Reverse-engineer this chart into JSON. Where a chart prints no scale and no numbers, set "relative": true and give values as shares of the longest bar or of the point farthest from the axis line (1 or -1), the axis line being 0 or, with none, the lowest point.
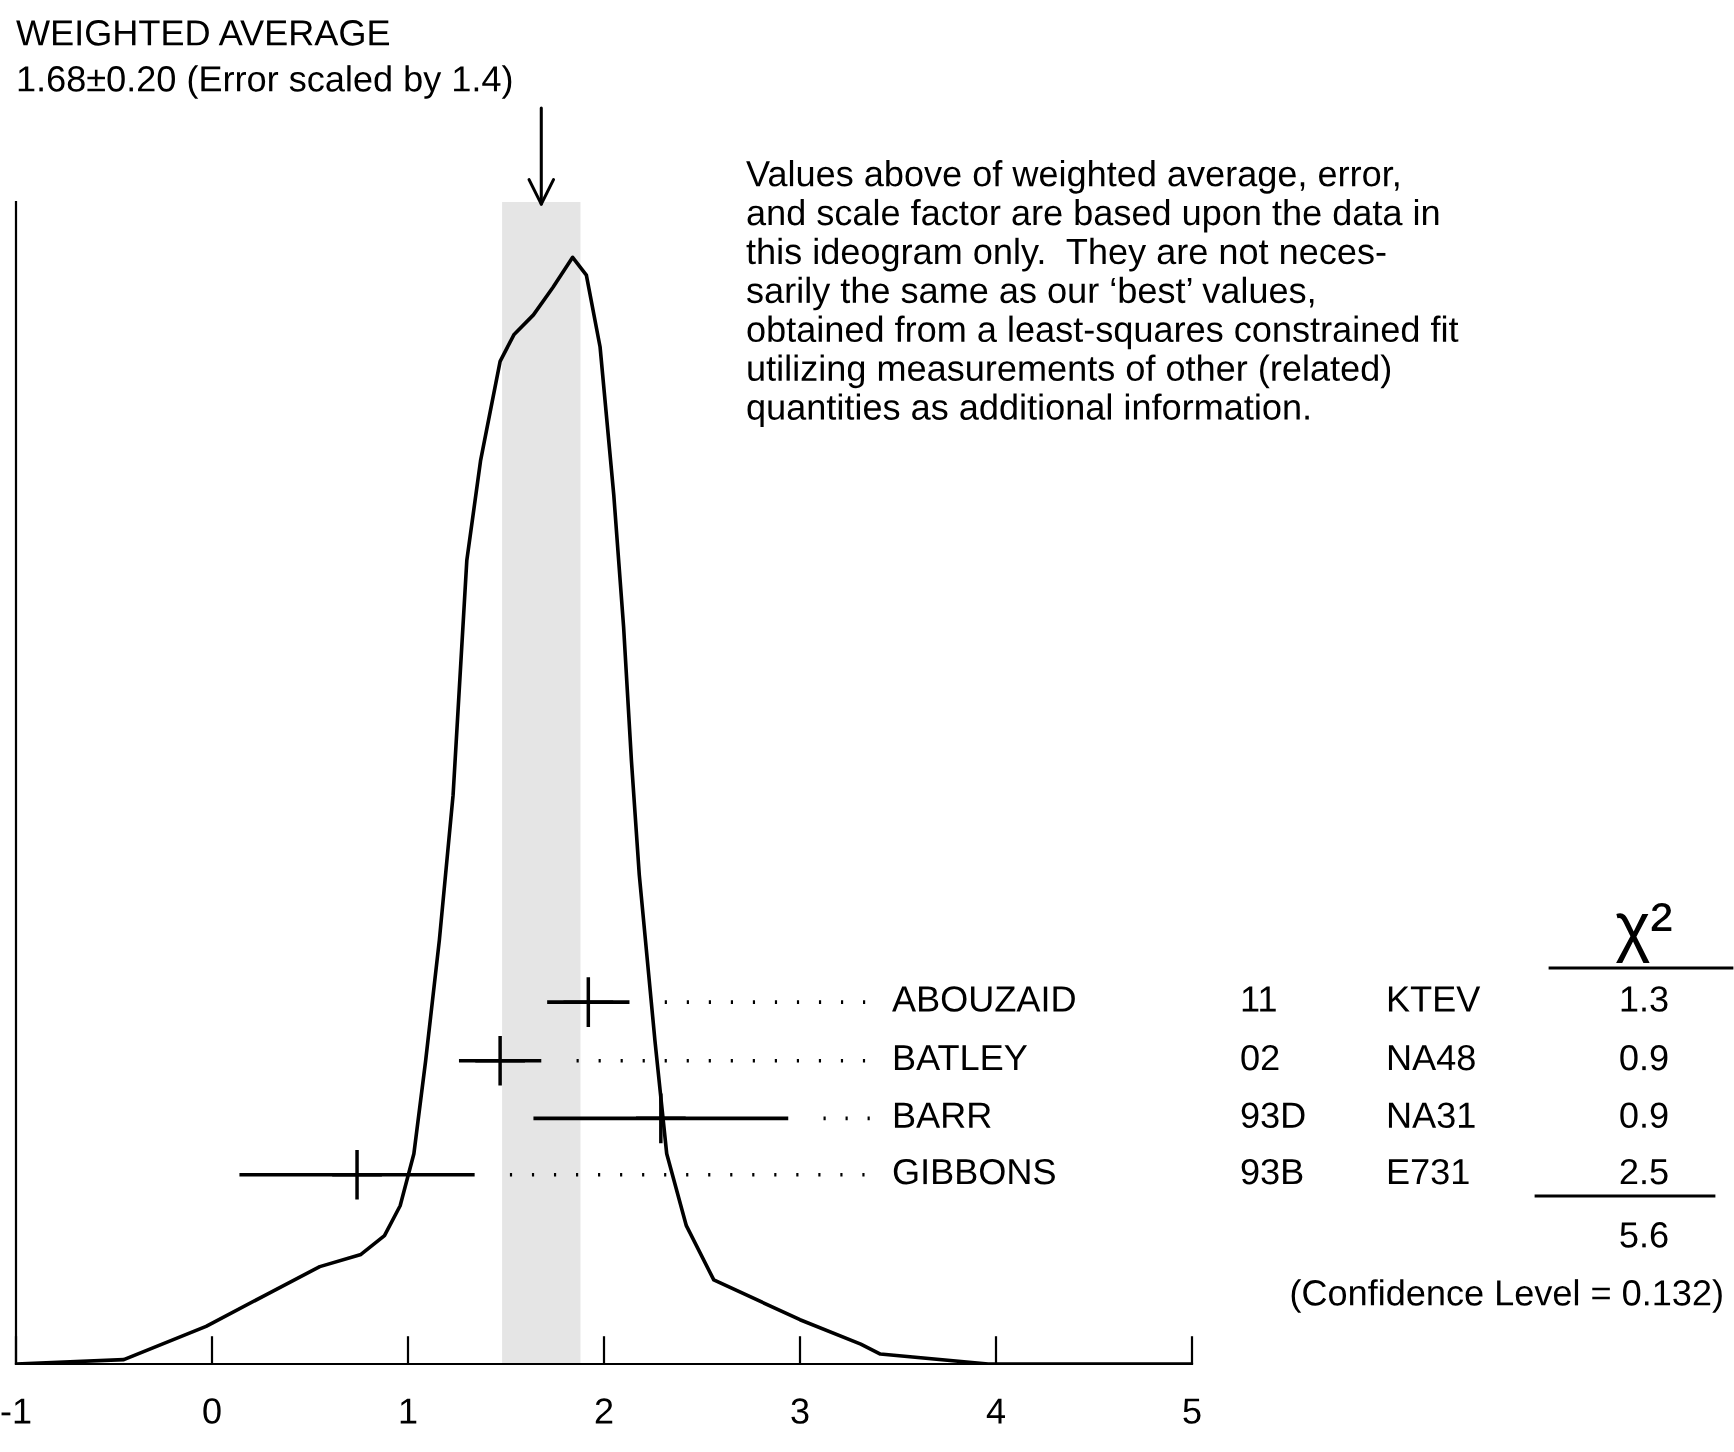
{
  "chart_data": {
    "type": "line",
    "title": "WEIGHTED AVERAGE",
    "subtitle": "1.68±0.20 (Error scaled by 1.4)",
    "relative": true,
    "xlim": [
      -1,
      5
    ],
    "xticks": [
      -1,
      0,
      1,
      2,
      3,
      4,
      5
    ],
    "tick_labels": "x",
    "grid": false,
    "bands": [
      {
        "axis": "x",
        "from": 1.48,
        "to": 1.88,
        "color": "#e5e5e5"
      }
    ],
    "series": [
      {
        "color": "#000000",
        "line_style": "solid",
        "marker": "none",
        "x": [
          -1,
          -0.45,
          -0.03,
          0.28,
          0.55,
          0.76,
          0.88,
          0.96,
          1.03,
          1.09,
          1.16,
          1.23,
          1.3,
          1.37,
          1.47,
          1.54,
          1.64,
          1.74,
          1.84,
          1.91,
          1.98,
          2.05,
          2.1,
          2.14,
          2.18,
          2.26,
          2.32,
          2.42,
          2.56,
          3.0,
          3.31,
          3.41,
          3.96,
          5
        ],
        "values": [
          0,
          0.004,
          0.034,
          0.063,
          0.088,
          0.099,
          0.116,
          0.143,
          0.19,
          0.274,
          0.383,
          0.514,
          0.726,
          0.816,
          0.906,
          0.93,
          0.948,
          0.973,
          1.0,
          0.984,
          0.919,
          0.785,
          0.666,
          0.545,
          0.442,
          0.292,
          0.19,
          0.125,
          0.076,
          0.04,
          0.018,
          0.009,
          0,
          0
        ]
      },
      {
        "type": "scatter",
        "name": "ABOUZAID",
        "color": "#000000",
        "marker": "cross",
        "x": [
          1.92
        ],
        "values": [
          0.327
        ],
        "xerrors": [
          0.21
        ]
      },
      {
        "type": "scatter",
        "name": "BATLEY",
        "color": "#000000",
        "marker": "cross",
        "x": [
          1.47
        ],
        "values": [
          0.274
        ],
        "xerrors": [
          0.21
        ]
      },
      {
        "type": "scatter",
        "name": "BARR",
        "color": "#000000",
        "marker": "cross",
        "x": [
          2.29
        ],
        "values": [
          0.222
        ],
        "xerrors": [
          0.65
        ]
      },
      {
        "type": "scatter",
        "name": "GIBBONS",
        "color": "#000000",
        "marker": "cross",
        "x": [
          0.74
        ],
        "values": [
          0.171
        ],
        "xerrors": [
          0.6
        ]
      }
    ],
    "annotations": [
      "Values above of weighted average, error,\nand scale factor are based upon the data in\nthis ideogram only.  They are not neces-\nsarily the same as our ‘best’ values,\nobtained from a least-squares constrained fit\nutilizing measurements of other (related)\nquantities as additional information.",
      "χ²",
      "11",
      "KTEV",
      "1.3",
      "02",
      "NA48",
      "0.9",
      "93D",
      "NA31",
      "0.9",
      "93B",
      "E731",
      "2.5",
      "5.6",
      "(Confidence Level = 0.132)"
    ]
  }
}
